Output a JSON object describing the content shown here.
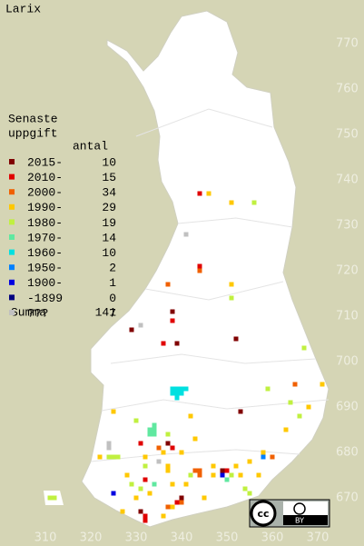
{
  "title": "Larix",
  "legend": {
    "heading": [
      "Senaste",
      "uppgift"
    ],
    "count_heading": "antal",
    "rows": [
      {
        "label": "2015-",
        "color": "#800000",
        "count": 10,
        "points": [
          [
            344,
            737
          ],
          [
            341,
            728
          ],
          [
            338,
            711
          ],
          [
            329,
            707
          ],
          [
            339,
            704
          ],
          [
            352,
            705
          ],
          [
            353,
            689
          ],
          [
            337,
            682
          ],
          [
            349,
            676
          ],
          [
            340,
            670
          ],
          [
            331,
            667
          ]
        ]
      },
      {
        "label": "2010-",
        "color": "#e00000",
        "count": 15,
        "points": [
          [
            344,
            737
          ],
          [
            344,
            721
          ],
          [
            344,
            721
          ],
          [
            338,
            709
          ],
          [
            336,
            704
          ],
          [
            331,
            682
          ],
          [
            338,
            681
          ],
          [
            350,
            676
          ],
          [
            332,
            674
          ],
          [
            339,
            669
          ],
          [
            332,
            666
          ],
          [
            332,
            665
          ]
        ]
      },
      {
        "label": "2000-",
        "color": "#f06000",
        "count": 34,
        "points": [
          [
            344,
            720
          ],
          [
            337,
            717
          ],
          [
            365,
            695
          ],
          [
            335,
            681
          ],
          [
            360,
            679
          ],
          [
            343,
            676
          ],
          [
            344,
            676
          ],
          [
            344,
            675
          ],
          [
            340,
            669
          ],
          [
            337,
            668
          ]
        ]
      },
      {
        "label": "1990-",
        "color": "#ffc800",
        "count": 29,
        "points": [
          [
            346,
            737
          ],
          [
            351,
            735
          ],
          [
            351,
            717
          ],
          [
            371,
            695
          ],
          [
            368,
            690
          ],
          [
            325,
            689
          ],
          [
            342,
            688
          ],
          [
            363,
            685
          ],
          [
            343,
            683
          ],
          [
            336,
            680
          ],
          [
            340,
            680
          ],
          [
            322,
            679
          ],
          [
            332,
            679
          ],
          [
            337,
            677
          ],
          [
            337,
            676
          ],
          [
            358,
            680
          ],
          [
            355,
            678
          ],
          [
            352,
            677
          ],
          [
            347,
            677
          ],
          [
            347,
            675
          ],
          [
            353,
            675
          ],
          [
            357,
            675
          ],
          [
            328,
            675
          ],
          [
            341,
            673
          ],
          [
            338,
            673
          ],
          [
            330,
            670
          ],
          [
            333,
            671
          ],
          [
            338,
            668
          ],
          [
            327,
            667
          ],
          [
            336,
            666
          ],
          [
            345,
            670
          ]
        ]
      },
      {
        "label": "1980-",
        "color": "#c0f040",
        "count": 19,
        "points": [
          [
            356,
            735
          ],
          [
            351,
            714
          ],
          [
            367,
            703
          ],
          [
            359,
            694
          ],
          [
            364,
            691
          ],
          [
            366,
            688
          ],
          [
            330,
            687
          ],
          [
            337,
            684
          ],
          [
            324,
            679
          ],
          [
            325,
            679
          ],
          [
            326,
            679
          ],
          [
            332,
            677
          ],
          [
            342,
            675
          ],
          [
            329,
            673
          ],
          [
            331,
            672
          ],
          [
            354,
            672
          ],
          [
            355,
            671
          ],
          [
            311,
            670
          ],
          [
            312,
            670
          ],
          [
            351,
            675
          ]
        ]
      },
      {
        "label": "1970-",
        "color": "#60e8a0",
        "count": 14,
        "points": [
          [
            334,
            686
          ],
          [
            334,
            685
          ],
          [
            333,
            684
          ],
          [
            334,
            684
          ],
          [
            333,
            685
          ],
          [
            334,
            673
          ],
          [
            350,
            674
          ]
        ]
      },
      {
        "label": "1960-",
        "color": "#00e0e0",
        "count": 10,
        "points": [
          [
            338,
            694
          ],
          [
            339,
            694
          ],
          [
            340,
            694
          ],
          [
            341,
            694
          ],
          [
            338,
            693
          ],
          [
            339,
            693
          ],
          [
            340,
            693
          ],
          [
            339,
            692
          ]
        ]
      },
      {
        "label": "1950-",
        "color": "#0080ff",
        "count": 2,
        "points": [
          [
            358,
            679
          ]
        ]
      },
      {
        "label": "1900-",
        "color": "#0000e0",
        "count": 1,
        "points": [
          [
            349,
            675
          ],
          [
            325,
            671
          ]
        ]
      },
      {
        "label": "-1899",
        "color": "#000080",
        "count": 0,
        "points": []
      },
      {
        "label": "???",
        "color": "#c0c0c0",
        "count": 7,
        "points": [
          [
            341,
            728
          ],
          [
            331,
            708
          ],
          [
            324,
            682
          ],
          [
            324,
            681
          ],
          [
            335,
            678
          ]
        ]
      }
    ],
    "total_label": "Summa",
    "total": 141
  },
  "xlim": [
    300,
    380
  ],
  "ylim": [
    660,
    780
  ],
  "xticks": [
    310,
    320,
    330,
    340,
    350,
    360,
    370
  ],
  "yticks": [
    670,
    680,
    690,
    700,
    710,
    720,
    730,
    740,
    750,
    760,
    770
  ],
  "license": {
    "icon": "cc",
    "label": "BY"
  }
}
